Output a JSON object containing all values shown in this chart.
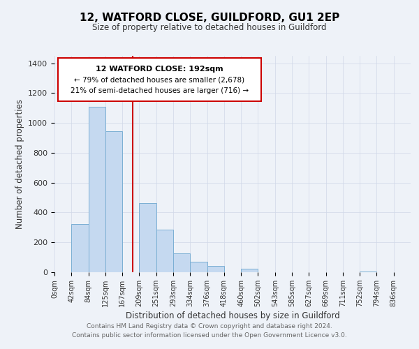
{
  "title": "12, WATFORD CLOSE, GUILDFORD, GU1 2EP",
  "subtitle": "Size of property relative to detached houses in Guildford",
  "xlabel": "Distribution of detached houses by size in Guildford",
  "ylabel": "Number of detached properties",
  "bar_labels": [
    "0sqm",
    "42sqm",
    "84sqm",
    "125sqm",
    "167sqm",
    "209sqm",
    "251sqm",
    "293sqm",
    "334sqm",
    "376sqm",
    "418sqm",
    "460sqm",
    "502sqm",
    "543sqm",
    "585sqm",
    "627sqm",
    "669sqm",
    "711sqm",
    "752sqm",
    "794sqm",
    "836sqm"
  ],
  "bar_values": [
    0,
    325,
    1110,
    945,
    0,
    465,
    285,
    125,
    68,
    42,
    0,
    22,
    0,
    0,
    0,
    0,
    0,
    0,
    5,
    0,
    0
  ],
  "bar_color": "#c5d9f0",
  "bar_edge_color": "#7bafd4",
  "vline_color": "#cc0000",
  "annotation_title": "12 WATFORD CLOSE: 192sqm",
  "annotation_line1": "← 79% of detached houses are smaller (2,678)",
  "annotation_line2": "21% of semi-detached houses are larger (716) →",
  "annotation_box_color": "#ffffff",
  "annotation_box_edge": "#cc0000",
  "ylim": [
    0,
    1450
  ],
  "yticks": [
    0,
    200,
    400,
    600,
    800,
    1000,
    1200,
    1400
  ],
  "grid_color": "#d0d8e8",
  "bg_color": "#eef2f8",
  "footer1": "Contains HM Land Registry data © Crown copyright and database right 2024.",
  "footer2": "Contains public sector information licensed under the Open Government Licence v3.0."
}
